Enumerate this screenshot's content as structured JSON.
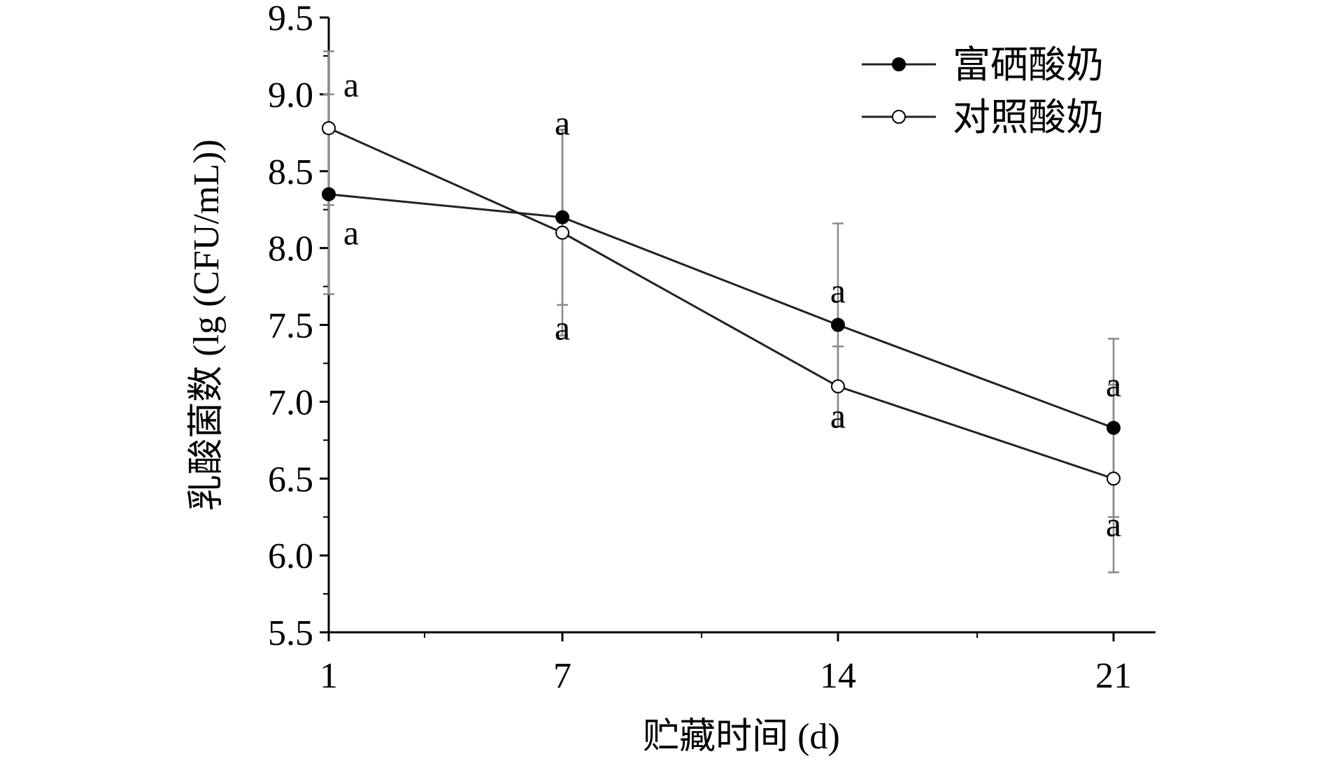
{
  "chart_data": {
    "type": "line",
    "x": [
      1,
      7,
      14,
      21
    ],
    "x_tick_labels": [
      "1",
      "7",
      "14",
      "21"
    ],
    "xlabel": "贮藏时间 (d)",
    "ylabel": "乳酸菌数 (lg (CFU/mL))",
    "y_tick_labels": [
      "5.5",
      "6.0",
      "6.5",
      "7.0",
      "7.5",
      "8.0",
      "8.5",
      "9.0",
      "9.5"
    ],
    "ylim": [
      5.5,
      9.5
    ],
    "grid": false,
    "legend_position": "top-right",
    "series": [
      {
        "name": "富硒酸奶",
        "marker": "filled-circle",
        "color": "#000000",
        "values": [
          8.35,
          8.2,
          7.5,
          6.83
        ],
        "error": [
          0.65,
          0.57,
          0.66,
          0.58
        ],
        "significance": [
          "a",
          "a",
          "a",
          "a"
        ]
      },
      {
        "name": "对照酸奶",
        "marker": "open-circle",
        "color": "#000000",
        "values": [
          8.78,
          8.1,
          7.1,
          6.5
        ],
        "error": [
          0.5,
          0.67,
          0.26,
          0.61
        ],
        "significance": [
          "a",
          "a",
          "a",
          "a"
        ]
      }
    ]
  }
}
